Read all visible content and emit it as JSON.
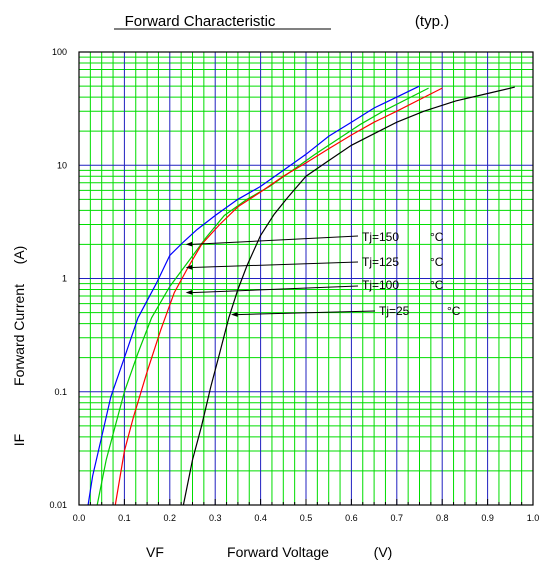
{
  "chart_data": {
    "type": "line",
    "title": "Forward Characteristic",
    "title_suffix": "(typ.)",
    "xlabel_symbol": "VF",
    "xlabel": "Forward Voltage",
    "xlabel_unit": "(V)",
    "ylabel_symbol": "IF",
    "ylabel": "Forward Current",
    "ylabel_unit": "(A)",
    "xlim": [
      0.0,
      1.0
    ],
    "ylim": [
      0.01,
      100
    ],
    "y_scale": "log",
    "grid": true,
    "x_ticks": [
      "0.0",
      "0.1",
      "0.2",
      "0.3",
      "0.4",
      "0.5",
      "0.6",
      "0.7",
      "0.8",
      "0.9",
      "1.0"
    ],
    "y_ticks": [
      {
        "value": 0.01,
        "label": "0.01"
      },
      {
        "value": 0.1,
        "label": "0.1"
      },
      {
        "value": 1,
        "label": "1"
      },
      {
        "value": 10,
        "label": "10"
      },
      {
        "value": 100,
        "label": "100"
      }
    ],
    "grid_colors": {
      "major_x": "#2020c0",
      "minor_x": "#00dd00",
      "major_y": "#2020c0",
      "minor_y": "#00dd00"
    },
    "series": [
      {
        "name": "Tj=150",
        "unit": "°C",
        "color": "#0000ff",
        "points": [
          [
            0.02,
            0.01
          ],
          [
            0.03,
            0.018
          ],
          [
            0.05,
            0.04
          ],
          [
            0.07,
            0.09
          ],
          [
            0.1,
            0.2
          ],
          [
            0.13,
            0.45
          ],
          [
            0.17,
            0.9
          ],
          [
            0.2,
            1.6
          ],
          [
            0.23,
            2.1
          ],
          [
            0.26,
            2.7
          ],
          [
            0.3,
            3.6
          ],
          [
            0.35,
            5.0
          ],
          [
            0.4,
            6.5
          ],
          [
            0.45,
            9.0
          ],
          [
            0.5,
            12.5
          ],
          [
            0.55,
            18
          ],
          [
            0.6,
            24
          ],
          [
            0.65,
            32
          ],
          [
            0.7,
            40
          ],
          [
            0.75,
            50
          ]
        ]
      },
      {
        "name": "Tj=125",
        "unit": "°C",
        "color": "#00cc00",
        "points": [
          [
            0.04,
            0.01
          ],
          [
            0.06,
            0.025
          ],
          [
            0.08,
            0.05
          ],
          [
            0.1,
            0.1
          ],
          [
            0.13,
            0.22
          ],
          [
            0.16,
            0.45
          ],
          [
            0.2,
            0.85
          ],
          [
            0.24,
            1.4
          ],
          [
            0.28,
            2.3
          ],
          [
            0.32,
            3.6
          ],
          [
            0.37,
            5.0
          ],
          [
            0.42,
            6.5
          ],
          [
            0.47,
            9.0
          ],
          [
            0.52,
            12.5
          ],
          [
            0.57,
            17
          ],
          [
            0.62,
            23
          ],
          [
            0.67,
            30
          ],
          [
            0.72,
            38
          ],
          [
            0.77,
            48
          ]
        ]
      },
      {
        "name": "Tj=100",
        "unit": "°C",
        "color": "#ff0000",
        "points": [
          [
            0.08,
            0.01
          ],
          [
            0.1,
            0.03
          ],
          [
            0.12,
            0.06
          ],
          [
            0.15,
            0.15
          ],
          [
            0.18,
            0.35
          ],
          [
            0.21,
            0.75
          ],
          [
            0.24,
            1.25
          ],
          [
            0.27,
            2.0
          ],
          [
            0.31,
            3.0
          ],
          [
            0.35,
            4.3
          ],
          [
            0.4,
            5.8
          ],
          [
            0.45,
            8.0
          ],
          [
            0.5,
            10.5
          ],
          [
            0.55,
            14
          ],
          [
            0.6,
            18.5
          ],
          [
            0.65,
            24
          ],
          [
            0.7,
            30
          ],
          [
            0.75,
            38
          ],
          [
            0.8,
            48
          ]
        ]
      },
      {
        "name": "Tj=25",
        "unit": "°C",
        "color": "#000000",
        "points": [
          [
            0.23,
            0.01
          ],
          [
            0.25,
            0.025
          ],
          [
            0.27,
            0.05
          ],
          [
            0.29,
            0.11
          ],
          [
            0.31,
            0.22
          ],
          [
            0.33,
            0.45
          ],
          [
            0.35,
            0.8
          ],
          [
            0.37,
            1.3
          ],
          [
            0.4,
            2.4
          ],
          [
            0.43,
            3.7
          ],
          [
            0.46,
            5.2
          ],
          [
            0.5,
            8.0
          ],
          [
            0.55,
            11
          ],
          [
            0.6,
            15
          ],
          [
            0.65,
            19
          ],
          [
            0.7,
            24
          ],
          [
            0.76,
            30
          ],
          [
            0.83,
            37
          ],
          [
            0.9,
            43
          ],
          [
            0.96,
            49
          ]
        ]
      }
    ],
    "annotations": [
      {
        "series": "Tj=150",
        "text": "Tj=150",
        "unit": "°C",
        "arrow_to": [
          0.235,
          2.0
        ]
      },
      {
        "series": "Tj=125",
        "text": "Tj=125",
        "unit": "°C",
        "arrow_to": [
          0.235,
          1.25
        ]
      },
      {
        "series": "Tj=100",
        "text": "Tj=100",
        "unit": "°C",
        "arrow_to": [
          0.235,
          0.75
        ]
      },
      {
        "series": "Tj=25",
        "text": "Tj=25",
        "unit": "°C",
        "arrow_to": [
          0.335,
          0.48
        ]
      }
    ]
  }
}
